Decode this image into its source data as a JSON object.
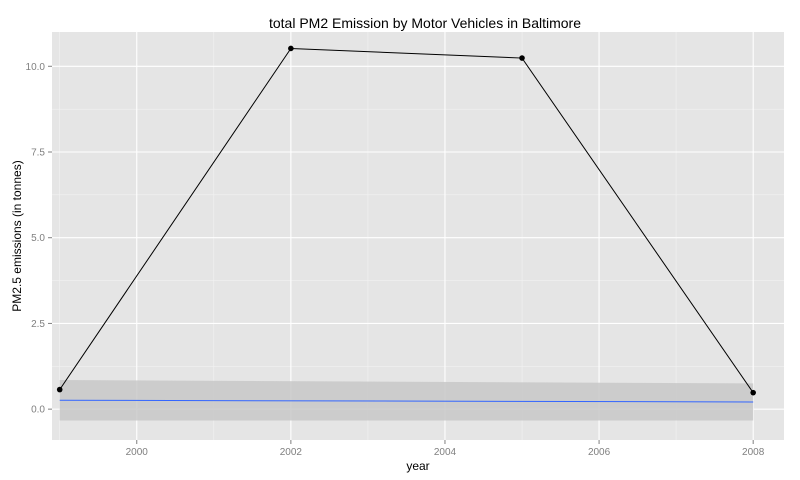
{
  "chart_data": {
    "type": "line",
    "title": "total PM2 Emission by Motor Vehicles in Baltimore",
    "xlabel": "year",
    "ylabel": "PM2.5 emissions (in tonnes)",
    "xlim": [
      1998.9,
      2008.4
    ],
    "ylim": [
      -0.9,
      11.0
    ],
    "x_ticks": [
      2000,
      2002,
      2004,
      2006,
      2008
    ],
    "y_ticks": [
      0.0,
      2.5,
      5.0,
      7.5,
      10.0
    ],
    "y_tick_labels": [
      "0.0",
      "2.5",
      "5.0",
      "7.5",
      "10.0"
    ],
    "grid": true,
    "legend": "none",
    "series": [
      {
        "kind": "line-with-points",
        "color": "#000000",
        "x": [
          1999,
          2002,
          2005,
          2008
        ],
        "y": [
          0.57,
          10.52,
          10.24,
          0.48
        ]
      }
    ],
    "smooth": {
      "kind": "linear-fit-with-confidence-band",
      "line_color": "#3366ff",
      "band_color": "#c8c8c8",
      "x": [
        1999,
        2008
      ],
      "y": [
        0.26,
        0.21
      ],
      "band_lower": [
        -0.33,
        -0.33
      ],
      "band_upper": [
        0.85,
        0.75
      ]
    },
    "colors": {
      "panel_background": "#e5e5e5",
      "grid_major": "#ffffff",
      "grid_minor": "#f2f2f2",
      "tick_label": "#7f7f7f"
    }
  }
}
